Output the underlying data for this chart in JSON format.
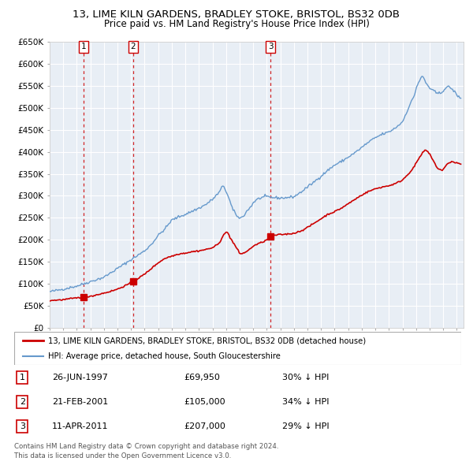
{
  "title1": "13, LIME KILN GARDENS, BRADLEY STOKE, BRISTOL, BS32 0DB",
  "title2": "Price paid vs. HM Land Registry's House Price Index (HPI)",
  "ylim": [
    0,
    650000
  ],
  "yticks": [
    0,
    50000,
    100000,
    150000,
    200000,
    250000,
    300000,
    350000,
    400000,
    450000,
    500000,
    550000,
    600000,
    650000
  ],
  "ytick_labels": [
    "£0",
    "£50K",
    "£100K",
    "£150K",
    "£200K",
    "£250K",
    "£300K",
    "£350K",
    "£400K",
    "£450K",
    "£500K",
    "£550K",
    "£600K",
    "£650K"
  ],
  "bg_color": "#e8eef5",
  "grid_color": "#ffffff",
  "line_color_red": "#cc0000",
  "line_color_blue": "#6699cc",
  "purchase_dates": [
    1997.49,
    2001.14,
    2011.28
  ],
  "purchase_prices": [
    69950,
    105000,
    207000
  ],
  "purchase_labels": [
    "1",
    "2",
    "3"
  ],
  "legend1": "13, LIME KILN GARDENS, BRADLEY STOKE, BRISTOL, BS32 0DB (detached house)",
  "legend2": "HPI: Average price, detached house, South Gloucestershire",
  "table_entries": [
    {
      "num": "1",
      "date": "26-JUN-1997",
      "price": "£69,950",
      "hpi": "30% ↓ HPI"
    },
    {
      "num": "2",
      "date": "21-FEB-2001",
      "price": "£105,000",
      "hpi": "34% ↓ HPI"
    },
    {
      "num": "3",
      "date": "11-APR-2011",
      "price": "£207,000",
      "hpi": "29% ↓ HPI"
    }
  ],
  "footnote1": "Contains HM Land Registry data © Crown copyright and database right 2024.",
  "footnote2": "This data is licensed under the Open Government Licence v3.0.",
  "xmin": 1995.0,
  "xmax": 2025.5,
  "blue_anchors": [
    [
      1995.0,
      82000
    ],
    [
      1996.0,
      88000
    ],
    [
      1997.0,
      95000
    ],
    [
      1998.0,
      105000
    ],
    [
      1999.0,
      115000
    ],
    [
      2000.0,
      135000
    ],
    [
      2001.0,
      155000
    ],
    [
      2001.5,
      165000
    ],
    [
      2002.0,
      175000
    ],
    [
      2002.5,
      190000
    ],
    [
      2003.0,
      210000
    ],
    [
      2003.5,
      225000
    ],
    [
      2004.0,
      245000
    ],
    [
      2004.5,
      252000
    ],
    [
      2005.0,
      258000
    ],
    [
      2005.5,
      265000
    ],
    [
      2006.0,
      272000
    ],
    [
      2006.5,
      280000
    ],
    [
      2007.0,
      292000
    ],
    [
      2007.5,
      308000
    ],
    [
      2007.8,
      325000
    ],
    [
      2008.2,
      295000
    ],
    [
      2008.5,
      268000
    ],
    [
      2008.8,
      255000
    ],
    [
      2009.0,
      248000
    ],
    [
      2009.3,
      255000
    ],
    [
      2009.6,
      268000
    ],
    [
      2009.9,
      278000
    ],
    [
      2010.0,
      285000
    ],
    [
      2010.3,
      292000
    ],
    [
      2010.6,
      296000
    ],
    [
      2010.9,
      298000
    ],
    [
      2011.0,
      298000
    ],
    [
      2011.5,
      296000
    ],
    [
      2012.0,
      295000
    ],
    [
      2012.5,
      296000
    ],
    [
      2013.0,
      298000
    ],
    [
      2013.5,
      308000
    ],
    [
      2014.0,
      320000
    ],
    [
      2014.5,
      332000
    ],
    [
      2015.0,
      345000
    ],
    [
      2015.5,
      358000
    ],
    [
      2016.0,
      370000
    ],
    [
      2016.5,
      378000
    ],
    [
      2017.0,
      388000
    ],
    [
      2017.5,
      398000
    ],
    [
      2018.0,
      410000
    ],
    [
      2018.5,
      422000
    ],
    [
      2019.0,
      432000
    ],
    [
      2019.5,
      440000
    ],
    [
      2020.0,
      445000
    ],
    [
      2020.5,
      455000
    ],
    [
      2021.0,
      468000
    ],
    [
      2021.3,
      490000
    ],
    [
      2021.6,
      510000
    ],
    [
      2021.9,
      530000
    ],
    [
      2022.0,
      545000
    ],
    [
      2022.3,
      565000
    ],
    [
      2022.5,
      572000
    ],
    [
      2022.7,
      558000
    ],
    [
      2023.0,
      545000
    ],
    [
      2023.3,
      538000
    ],
    [
      2023.6,
      532000
    ],
    [
      2023.9,
      535000
    ],
    [
      2024.0,
      540000
    ],
    [
      2024.3,
      548000
    ],
    [
      2024.6,
      545000
    ],
    [
      2025.0,
      530000
    ],
    [
      2025.3,
      520000
    ]
  ],
  "red_anchors": [
    [
      1995.0,
      62000
    ],
    [
      1996.0,
      64000
    ],
    [
      1996.5,
      66000
    ],
    [
      1997.0,
      68000
    ],
    [
      1997.49,
      69950
    ],
    [
      1997.8,
      71000
    ],
    [
      1998.2,
      73000
    ],
    [
      1998.6,
      76000
    ],
    [
      1999.0,
      79000
    ],
    [
      1999.5,
      83000
    ],
    [
      2000.0,
      88000
    ],
    [
      2000.5,
      95000
    ],
    [
      2001.0,
      102000
    ],
    [
      2001.14,
      105000
    ],
    [
      2001.5,
      112000
    ],
    [
      2002.0,
      122000
    ],
    [
      2002.5,
      135000
    ],
    [
      2003.0,
      148000
    ],
    [
      2003.5,
      158000
    ],
    [
      2004.0,
      163000
    ],
    [
      2004.5,
      168000
    ],
    [
      2005.0,
      170000
    ],
    [
      2005.5,
      173000
    ],
    [
      2006.0,
      175000
    ],
    [
      2006.5,
      178000
    ],
    [
      2007.0,
      182000
    ],
    [
      2007.5,
      192000
    ],
    [
      2007.8,
      212000
    ],
    [
      2008.1,
      218000
    ],
    [
      2008.3,
      205000
    ],
    [
      2008.6,
      190000
    ],
    [
      2008.9,
      175000
    ],
    [
      2009.0,
      168000
    ],
    [
      2009.3,
      170000
    ],
    [
      2009.6,
      175000
    ],
    [
      2009.9,
      183000
    ],
    [
      2010.0,
      186000
    ],
    [
      2010.3,
      190000
    ],
    [
      2010.6,
      194000
    ],
    [
      2010.9,
      198000
    ],
    [
      2011.0,
      200000
    ],
    [
      2011.28,
      207000
    ],
    [
      2011.5,
      210000
    ],
    [
      2012.0,
      212000
    ],
    [
      2012.5,
      213000
    ],
    [
      2013.0,
      215000
    ],
    [
      2013.5,
      220000
    ],
    [
      2014.0,
      228000
    ],
    [
      2014.5,
      238000
    ],
    [
      2015.0,
      248000
    ],
    [
      2015.5,
      258000
    ],
    [
      2016.0,
      264000
    ],
    [
      2016.5,
      272000
    ],
    [
      2017.0,
      282000
    ],
    [
      2017.5,
      292000
    ],
    [
      2018.0,
      302000
    ],
    [
      2018.5,
      310000
    ],
    [
      2019.0,
      316000
    ],
    [
      2019.5,
      320000
    ],
    [
      2020.0,
      323000
    ],
    [
      2020.5,
      328000
    ],
    [
      2021.0,
      336000
    ],
    [
      2021.5,
      352000
    ],
    [
      2021.9,
      368000
    ],
    [
      2022.2,
      385000
    ],
    [
      2022.5,
      398000
    ],
    [
      2022.7,
      405000
    ],
    [
      2023.0,
      395000
    ],
    [
      2023.3,
      378000
    ],
    [
      2023.6,
      362000
    ],
    [
      2023.9,
      358000
    ],
    [
      2024.0,
      360000
    ],
    [
      2024.3,
      372000
    ],
    [
      2024.6,
      378000
    ],
    [
      2025.0,
      375000
    ],
    [
      2025.3,
      372000
    ]
  ]
}
